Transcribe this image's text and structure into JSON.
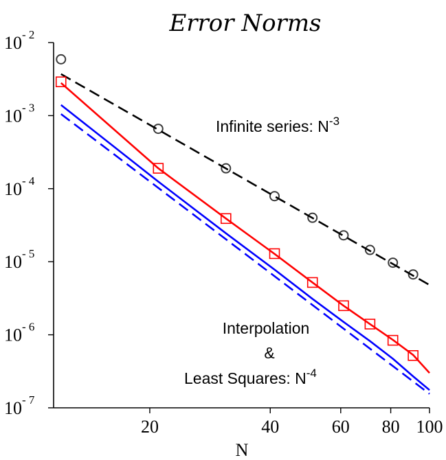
{
  "chart_data": {
    "type": "line",
    "title": "Error Norms",
    "xlabel": "N",
    "ylabel": "",
    "x_scale": "log",
    "y_scale": "log",
    "xlim": [
      11.5,
      100
    ],
    "ylim": [
      1e-07,
      0.01
    ],
    "grid": false,
    "x_ticks": [
      {
        "value": 20,
        "label": "20"
      },
      {
        "value": 40,
        "label": "40"
      },
      {
        "value": 60,
        "label": "60"
      },
      {
        "value": 80,
        "label": "80"
      },
      {
        "value": 100,
        "label": "100"
      }
    ],
    "y_ticks": [
      {
        "value": 0.01,
        "base": "10",
        "exp": "- 2"
      },
      {
        "value": 0.001,
        "base": "10",
        "exp": "- 3"
      },
      {
        "value": 0.0001,
        "base": "10",
        "exp": "- 4"
      },
      {
        "value": 1e-05,
        "base": "10",
        "exp": "- 5"
      },
      {
        "value": 1e-06,
        "base": "10",
        "exp": "- 6"
      },
      {
        "value": 1e-07,
        "base": "10",
        "exp": "- 7"
      }
    ],
    "series": [
      {
        "style": "markers",
        "marker": "circle",
        "color": "#3a3a3a",
        "x": [
          12,
          21,
          31,
          41,
          51,
          61,
          71,
          81,
          91
        ],
        "y": [
          0.0059,
          0.00066,
          0.00019,
          7.9e-05,
          4e-05,
          2.3e-05,
          1.45e-05,
          9.7e-06,
          6.7e-06
        ]
      },
      {
        "style": "dashed",
        "color": "#000000",
        "x": [
          12,
          100
        ],
        "y": [
          0.0037,
          4.8e-06
        ]
      },
      {
        "style": "solid",
        "color": "#ff0000",
        "x": [
          12,
          21,
          31,
          41,
          51,
          61,
          71,
          81,
          91,
          100
        ],
        "y": [
          0.0028,
          0.00019,
          3.9e-05,
          1.28e-05,
          5.2e-06,
          2.5e-06,
          1.4e-06,
          8.5e-07,
          5.3e-07,
          3e-07
        ]
      },
      {
        "style": "markers",
        "marker": "square",
        "color": "#ff0000",
        "x": [
          12,
          21,
          31,
          41,
          51,
          61,
          71,
          81,
          91
        ],
        "y": [
          0.0029,
          0.00019,
          3.9e-05,
          1.29e-05,
          5.2e-06,
          2.5e-06,
          1.4e-06,
          8.4e-07,
          5.2e-07
        ]
      },
      {
        "style": "solid",
        "color": "#0000ff",
        "x": [
          12,
          21,
          31,
          41,
          51,
          61,
          71,
          81,
          91,
          100
        ],
        "y": [
          0.0014,
          0.000125,
          2.45e-05,
          7.8e-06,
          3.1e-06,
          1.5e-06,
          8.2e-07,
          4.7e-07,
          2.7e-07,
          1.75e-07
        ]
      },
      {
        "style": "dashed",
        "color": "#0000ff",
        "x": [
          12,
          100
        ],
        "y": [
          0.00105,
          1.55e-07
        ]
      }
    ],
    "annotations": [
      {
        "id": "infinite",
        "text": "Infinite series: N",
        "sup": "-3"
      },
      {
        "id": "interp1",
        "text": "Interpolation"
      },
      {
        "id": "interp2",
        "text": "&"
      },
      {
        "id": "interp3",
        "text": "Least Squares: N",
        "sup": "-4"
      }
    ]
  }
}
